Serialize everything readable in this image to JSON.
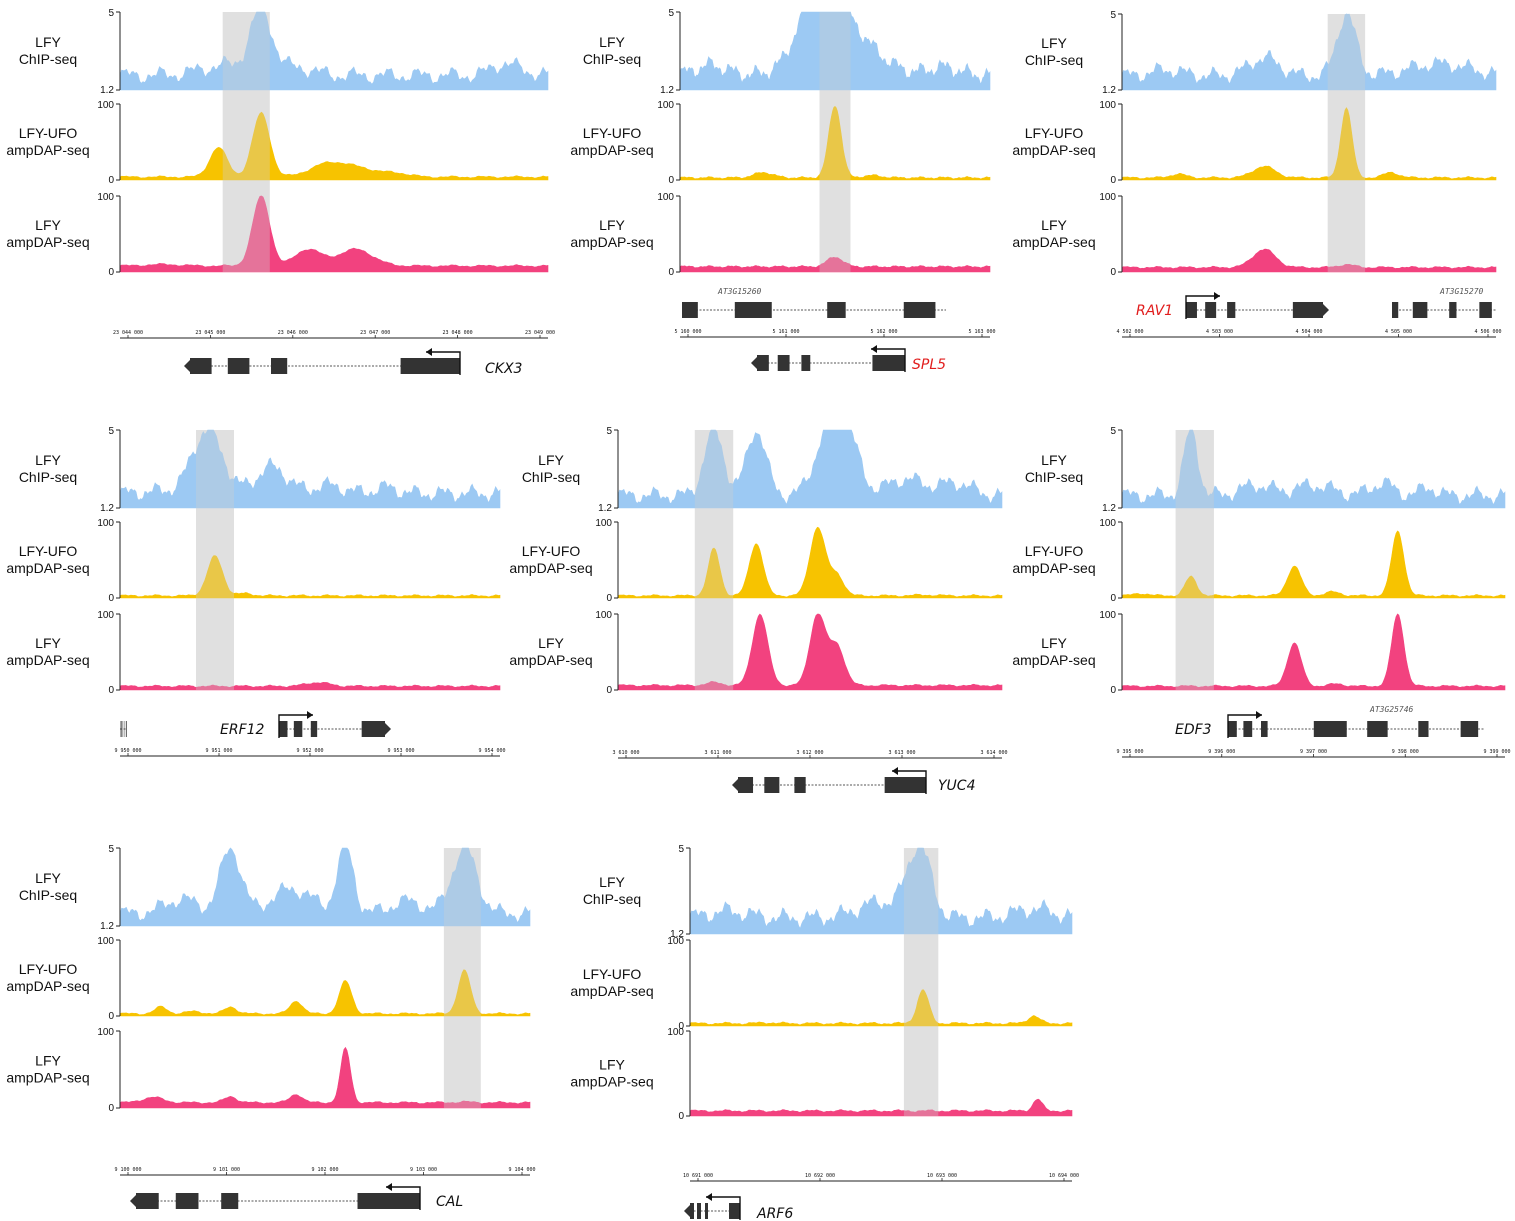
{
  "colors": {
    "chip": "#9cc9f3",
    "ufo": "#f7c300",
    "lfy": "#f2427f",
    "highlight": "#d9d9d9",
    "gene": "#333333"
  },
  "track_labels": {
    "chip": [
      "LFY",
      "ChIP-seq"
    ],
    "ufo": [
      "LFY-UFO",
      "ampDAP-seq"
    ],
    "lfy": [
      "LFY",
      "ampDAP-seq"
    ]
  },
  "chart_data": [
    {
      "type": "area",
      "gene": "CKX3",
      "gene_color": "#111111",
      "chip": {
        "ylim": [
          1.2,
          5
        ],
        "ticks": [
          "5",
          "1.2"
        ],
        "base": 1.9,
        "peaks": [
          [
            0.25,
            2.4,
            0.06
          ],
          [
            0.33,
            4.9,
            0.025
          ],
          [
            0.41,
            2.3,
            0.04
          ],
          [
            0.9,
            2.5,
            0.03
          ],
          [
            0.97,
            2.0,
            0.02
          ]
        ]
      },
      "ufo": {
        "ylim": [
          0,
          100
        ],
        "ticks": [
          "100",
          "0"
        ],
        "base": 4,
        "peaks": [
          [
            0.23,
            43,
            0.02
          ],
          [
            0.33,
            88,
            0.02
          ],
          [
            0.48,
            18,
            0.04
          ],
          [
            0.55,
            16,
            0.05
          ],
          [
            0.65,
            8,
            0.03
          ],
          [
            0.9,
            4,
            0.02
          ]
        ]
      },
      "lfy": {
        "ylim": [
          0,
          100
        ],
        "ticks": [
          "100",
          "0"
        ],
        "base": 8,
        "peaks": [
          [
            0.33,
            100,
            0.02
          ],
          [
            0.44,
            30,
            0.03
          ],
          [
            0.55,
            30,
            0.04
          ],
          [
            0.1,
            10,
            0.04
          ]
        ]
      },
      "highlight": [
        0.24,
        0.35
      ],
      "coords": [
        "23 044 000",
        "23 045 000",
        "23 046 000",
        "23 047 000",
        "23 048 000",
        "23 049 000"
      ],
      "neighbor": ""
    },
    {
      "type": "area",
      "gene": "SPL5",
      "gene_color": "#e11d1d",
      "chip": {
        "ylim": [
          1.2,
          5
        ],
        "ticks": [
          "5",
          "1.2"
        ],
        "base": 1.9,
        "peaks": [
          [
            0.45,
            5.0,
            0.06
          ],
          [
            0.52,
            4.2,
            0.1
          ],
          [
            0.1,
            2.4,
            0.05
          ],
          [
            0.85,
            2.3,
            0.05
          ]
        ]
      },
      "ufo": {
        "ylim": [
          0,
          100
        ],
        "ticks": [
          "100",
          "0"
        ],
        "base": 3,
        "peaks": [
          [
            0.5,
            98,
            0.02
          ],
          [
            0.27,
            10,
            0.03
          ],
          [
            0.62,
            6,
            0.03
          ]
        ]
      },
      "lfy": {
        "ylim": [
          0,
          100
        ],
        "ticks": [
          "100",
          "0"
        ],
        "base": 7,
        "peaks": [
          [
            0.5,
            20,
            0.025
          ]
        ]
      },
      "highlight": [
        0.45,
        0.55
      ],
      "coords": [
        "5 160 000",
        "5 161 000",
        "5 162 000",
        "5 163 000"
      ],
      "neighbor": "AT3G15260"
    },
    {
      "type": "area",
      "gene": "RAV1",
      "gene_color": "#e11d1d",
      "chip": {
        "ylim": [
          1.2,
          5
        ],
        "ticks": [
          "5",
          "1.2"
        ],
        "base": 1.9,
        "peaks": [
          [
            0.6,
            5.0,
            0.025
          ],
          [
            0.38,
            2.8,
            0.04
          ],
          [
            0.85,
            2.5,
            0.08
          ],
          [
            0.12,
            2.2,
            0.04
          ]
        ]
      },
      "ufo": {
        "ylim": [
          0,
          100
        ],
        "ticks": [
          "100",
          "0"
        ],
        "base": 3,
        "peaks": [
          [
            0.6,
            95,
            0.015
          ],
          [
            0.38,
            18,
            0.03
          ],
          [
            0.72,
            10,
            0.02
          ],
          [
            0.15,
            8,
            0.02
          ]
        ]
      },
      "lfy": {
        "ylim": [
          0,
          100
        ],
        "ticks": [
          "100",
          "0"
        ],
        "base": 6,
        "peaks": [
          [
            0.38,
            30,
            0.03
          ],
          [
            0.6,
            10,
            0.02
          ]
        ]
      },
      "highlight": [
        0.55,
        0.65
      ],
      "coords": [
        "4 502 000",
        "4 503 000",
        "4 504 000",
        "4 505 000",
        "4 506 000"
      ],
      "neighbor": "AT3G15270"
    },
    {
      "type": "area",
      "gene": "ERF12",
      "gene_color": "#111111",
      "chip": {
        "ylim": [
          1.2,
          5
        ],
        "ticks": [
          "5",
          "1.2"
        ],
        "base": 1.9,
        "peaks": [
          [
            0.23,
            5.0,
            0.04
          ],
          [
            0.4,
            3.2,
            0.04
          ],
          [
            0.55,
            2.3,
            0.04
          ],
          [
            0.7,
            2.2,
            0.03
          ],
          [
            0.1,
            2.0,
            0.04
          ]
        ]
      },
      "ufo": {
        "ylim": [
          0,
          100
        ],
        "ticks": [
          "100",
          "0"
        ],
        "base": 3,
        "peaks": [
          [
            0.25,
            55,
            0.02
          ],
          [
            0.33,
            6,
            0.02
          ]
        ]
      },
      "lfy": {
        "ylim": [
          0,
          100
        ],
        "ticks": [
          "100",
          "0"
        ],
        "base": 5,
        "peaks": [
          [
            0.52,
            10,
            0.03
          ]
        ]
      },
      "highlight": [
        0.2,
        0.3
      ],
      "coords": [
        "9 950 000",
        "9 951 000",
        "9 952 000",
        "9 953 000",
        "9 954 000"
      ],
      "neighbor": ""
    },
    {
      "type": "area",
      "gene": "YUC4",
      "gene_color": "#111111",
      "chip": {
        "ylim": [
          1.2,
          5
        ],
        "ticks": [
          "5",
          "1.2"
        ],
        "base": 1.8,
        "peaks": [
          [
            0.25,
            5.0,
            0.025
          ],
          [
            0.36,
            5.0,
            0.025
          ],
          [
            0.55,
            5.0,
            0.035
          ],
          [
            0.6,
            4.2,
            0.03
          ],
          [
            0.75,
            2.6,
            0.05
          ],
          [
            0.88,
            2.4,
            0.04
          ]
        ]
      },
      "ufo": {
        "ylim": [
          0,
          100
        ],
        "ticks": [
          "100",
          "0"
        ],
        "base": 3,
        "peaks": [
          [
            0.25,
            65,
            0.015
          ],
          [
            0.36,
            72,
            0.018
          ],
          [
            0.52,
            93,
            0.02
          ],
          [
            0.57,
            30,
            0.018
          ],
          [
            0.8,
            4,
            0.03
          ]
        ]
      },
      "lfy": {
        "ylim": [
          0,
          100
        ],
        "ticks": [
          "100",
          "0"
        ],
        "base": 6,
        "peaks": [
          [
            0.37,
            100,
            0.02
          ],
          [
            0.52,
            100,
            0.02
          ],
          [
            0.57,
            58,
            0.02
          ],
          [
            0.25,
            10,
            0.02
          ]
        ]
      },
      "highlight": [
        0.2,
        0.3
      ],
      "coords": [
        "3 610 000",
        "3 611 000",
        "3 612 000",
        "3 613 000",
        "3 614 000"
      ],
      "neighbor": ""
    },
    {
      "type": "area",
      "gene": "EDF3",
      "gene_color": "#111111",
      "chip": {
        "ylim": [
          1.2,
          5
        ],
        "ticks": [
          "5",
          "1.2"
        ],
        "base": 1.8,
        "peaks": [
          [
            0.18,
            5.0,
            0.018
          ],
          [
            0.35,
            2.3,
            0.04
          ],
          [
            0.5,
            2.3,
            0.05
          ],
          [
            0.68,
            2.4,
            0.03
          ],
          [
            0.8,
            2.2,
            0.02
          ]
        ]
      },
      "ufo": {
        "ylim": [
          0,
          100
        ],
        "ticks": [
          "100",
          "0"
        ],
        "base": 3,
        "peaks": [
          [
            0.18,
            28,
            0.015
          ],
          [
            0.45,
            42,
            0.018
          ],
          [
            0.72,
            88,
            0.016
          ],
          [
            0.55,
            8,
            0.02
          ],
          [
            0.05,
            6,
            0.02
          ]
        ]
      },
      "lfy": {
        "ylim": [
          0,
          100
        ],
        "ticks": [
          "100",
          "0"
        ],
        "base": 5,
        "peaks": [
          [
            0.45,
            62,
            0.018
          ],
          [
            0.72,
            100,
            0.016
          ],
          [
            0.56,
            8,
            0.02
          ]
        ]
      },
      "highlight": [
        0.14,
        0.24
      ],
      "coords": [
        "9 395 000",
        "9 396 000",
        "9 397 000",
        "9 398 000",
        "9 399 000"
      ],
      "neighbor": "AT3G25746"
    },
    {
      "type": "area",
      "gene": "CAL",
      "gene_color": "#111111",
      "chip": {
        "ylim": [
          1.2,
          5
        ],
        "ticks": [
          "5",
          "1.2"
        ],
        "base": 1.8,
        "peaks": [
          [
            0.27,
            5.0,
            0.025
          ],
          [
            0.55,
            5.0,
            0.02
          ],
          [
            0.84,
            5.0,
            0.03
          ],
          [
            0.42,
            3.0,
            0.05
          ],
          [
            0.15,
            2.5,
            0.04
          ],
          [
            0.7,
            2.4,
            0.04
          ]
        ]
      },
      "ufo": {
        "ylim": [
          0,
          100
        ],
        "ticks": [
          "100",
          "0"
        ],
        "base": 3,
        "peaks": [
          [
            0.84,
            60,
            0.015
          ],
          [
            0.55,
            46,
            0.015
          ],
          [
            0.43,
            20,
            0.015
          ],
          [
            0.27,
            12,
            0.015
          ],
          [
            0.1,
            12,
            0.015
          ],
          [
            0.18,
            6,
            0.02
          ]
        ]
      },
      "lfy": {
        "ylim": [
          0,
          100
        ],
        "ticks": [
          "100",
          "0"
        ],
        "base": 7,
        "peaks": [
          [
            0.55,
            78,
            0.012
          ],
          [
            0.43,
            18,
            0.015
          ],
          [
            0.27,
            15,
            0.015
          ],
          [
            0.08,
            14,
            0.025
          ],
          [
            0.84,
            8,
            0.02
          ]
        ]
      },
      "highlight": [
        0.79,
        0.88
      ],
      "coords": [
        "9 100 000",
        "9 101 000",
        "9 102 000",
        "9 103 000",
        "9 104 000"
      ],
      "neighbor": ""
    },
    {
      "type": "area",
      "gene": "ARF6",
      "gene_color": "#111111",
      "chip": {
        "ylim": [
          1.2,
          5
        ],
        "ticks": [
          "5",
          "1.2"
        ],
        "base": 1.9,
        "peaks": [
          [
            0.6,
            5.0,
            0.03
          ],
          [
            0.5,
            2.6,
            0.06
          ],
          [
            0.9,
            2.3,
            0.05
          ],
          [
            0.1,
            2.2,
            0.05
          ]
        ]
      },
      "ufo": {
        "ylim": [
          0,
          100
        ],
        "ticks": [
          "100",
          "0"
        ],
        "base": 3,
        "peaks": [
          [
            0.61,
            42,
            0.015
          ],
          [
            0.9,
            12,
            0.015
          ],
          [
            0.2,
            4,
            0.02
          ]
        ]
      },
      "lfy": {
        "ylim": [
          0,
          100
        ],
        "ticks": [
          "100",
          "0"
        ],
        "base": 6,
        "peaks": [
          [
            0.91,
            20,
            0.012
          ],
          [
            0.6,
            6,
            0.02
          ]
        ]
      },
      "highlight": [
        0.56,
        0.65
      ],
      "coords": [
        "10 691 000",
        "10 692 000",
        "10 693 000",
        "10 694 000"
      ],
      "neighbor": ""
    }
  ]
}
